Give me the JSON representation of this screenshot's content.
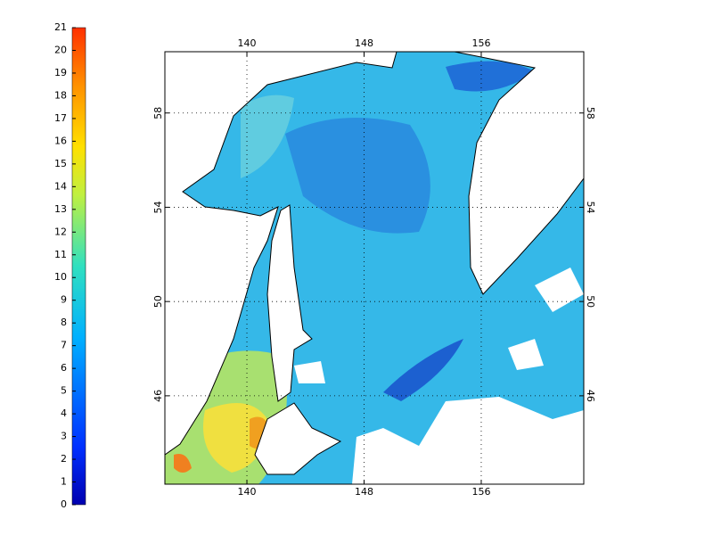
{
  "colorbar": {
    "ticks": [
      0,
      1,
      2,
      3,
      4,
      5,
      6,
      7,
      8,
      9,
      10,
      11,
      12,
      13,
      14,
      15,
      16,
      17,
      18,
      19,
      20,
      21
    ],
    "lim": [
      0,
      21
    ]
  },
  "map": {
    "xlim": [
      134.4,
      163
    ],
    "ylim": [
      42.25,
      60.6
    ],
    "xticks": [
      140,
      148,
      156
    ],
    "yticks": [
      46,
      50,
      54,
      58
    ],
    "grid": true
  }
}
